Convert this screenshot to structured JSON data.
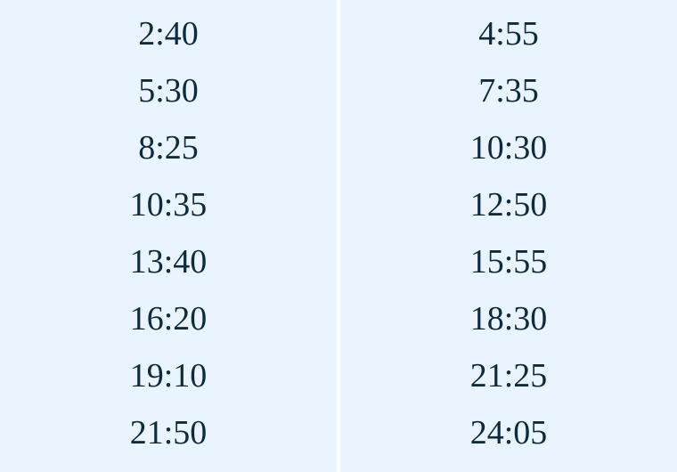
{
  "colors": {
    "background": "#eaf4ff",
    "text": "#0d2b3e",
    "divider": "#ffffff"
  },
  "columns": [
    {
      "times": [
        "2:40",
        "5:30",
        "8:25",
        "10:35",
        "13:40",
        "16:20",
        "19:10",
        "21:50"
      ]
    },
    {
      "times": [
        "4:55",
        "7:35",
        "10:30",
        "12:50",
        "15:55",
        "18:30",
        "21:25",
        "24:05"
      ]
    }
  ]
}
